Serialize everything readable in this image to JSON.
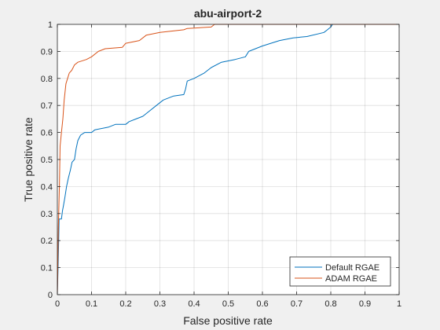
{
  "chart_data": {
    "type": "line",
    "title": "abu-airport-2",
    "xlabel": "False positive rate",
    "ylabel": "True positive rate",
    "xlim": [
      0,
      1
    ],
    "ylim": [
      0,
      1
    ],
    "grid": true,
    "legend_location": "bottom-right",
    "x_ticks": [
      "0",
      "0.1",
      "0.2",
      "0.3",
      "0.4",
      "0.5",
      "0.6",
      "0.7",
      "0.8",
      "0.9",
      "1"
    ],
    "y_ticks": [
      "0",
      "0.1",
      "0.2",
      "0.3",
      "0.4",
      "0.5",
      "0.6",
      "0.7",
      "0.8",
      "0.9",
      "1"
    ],
    "series": [
      {
        "name": "Default RGAE",
        "color": "#0072BD",
        "points": [
          [
            0,
            0
          ],
          [
            0.002,
            0.1
          ],
          [
            0.004,
            0.2
          ],
          [
            0.005,
            0.28
          ],
          [
            0.012,
            0.28
          ],
          [
            0.015,
            0.31
          ],
          [
            0.018,
            0.33
          ],
          [
            0.022,
            0.36
          ],
          [
            0.027,
            0.4
          ],
          [
            0.032,
            0.43
          ],
          [
            0.038,
            0.46
          ],
          [
            0.043,
            0.49
          ],
          [
            0.05,
            0.5
          ],
          [
            0.055,
            0.54
          ],
          [
            0.06,
            0.57
          ],
          [
            0.068,
            0.59
          ],
          [
            0.08,
            0.6
          ],
          [
            0.1,
            0.6
          ],
          [
            0.11,
            0.61
          ],
          [
            0.15,
            0.62
          ],
          [
            0.17,
            0.63
          ],
          [
            0.2,
            0.63
          ],
          [
            0.21,
            0.64
          ],
          [
            0.23,
            0.65
          ],
          [
            0.25,
            0.66
          ],
          [
            0.27,
            0.68
          ],
          [
            0.29,
            0.7
          ],
          [
            0.31,
            0.72
          ],
          [
            0.34,
            0.735
          ],
          [
            0.37,
            0.74
          ],
          [
            0.375,
            0.76
          ],
          [
            0.38,
            0.79
          ],
          [
            0.4,
            0.8
          ],
          [
            0.43,
            0.82
          ],
          [
            0.45,
            0.84
          ],
          [
            0.48,
            0.86
          ],
          [
            0.52,
            0.87
          ],
          [
            0.55,
            0.88
          ],
          [
            0.56,
            0.9
          ],
          [
            0.6,
            0.92
          ],
          [
            0.65,
            0.94
          ],
          [
            0.69,
            0.95
          ],
          [
            0.73,
            0.955
          ],
          [
            0.78,
            0.97
          ],
          [
            0.79,
            0.98
          ],
          [
            0.8,
            0.99
          ],
          [
            0.805,
            1
          ],
          [
            1,
            1
          ]
        ]
      },
      {
        "name": "ADAM RGAE",
        "color": "#D95319",
        "points": [
          [
            0,
            0
          ],
          [
            0.003,
            0.25
          ],
          [
            0.006,
            0.4
          ],
          [
            0.008,
            0.55
          ],
          [
            0.012,
            0.6
          ],
          [
            0.016,
            0.65
          ],
          [
            0.02,
            0.72
          ],
          [
            0.025,
            0.78
          ],
          [
            0.03,
            0.8
          ],
          [
            0.035,
            0.82
          ],
          [
            0.042,
            0.83
          ],
          [
            0.05,
            0.85
          ],
          [
            0.06,
            0.86
          ],
          [
            0.085,
            0.87
          ],
          [
            0.1,
            0.88
          ],
          [
            0.12,
            0.9
          ],
          [
            0.14,
            0.91
          ],
          [
            0.19,
            0.915
          ],
          [
            0.2,
            0.93
          ],
          [
            0.24,
            0.94
          ],
          [
            0.26,
            0.96
          ],
          [
            0.3,
            0.97
          ],
          [
            0.37,
            0.98
          ],
          [
            0.38,
            0.985
          ],
          [
            0.45,
            0.99
          ],
          [
            0.46,
            1
          ],
          [
            1,
            1
          ]
        ]
      }
    ]
  }
}
